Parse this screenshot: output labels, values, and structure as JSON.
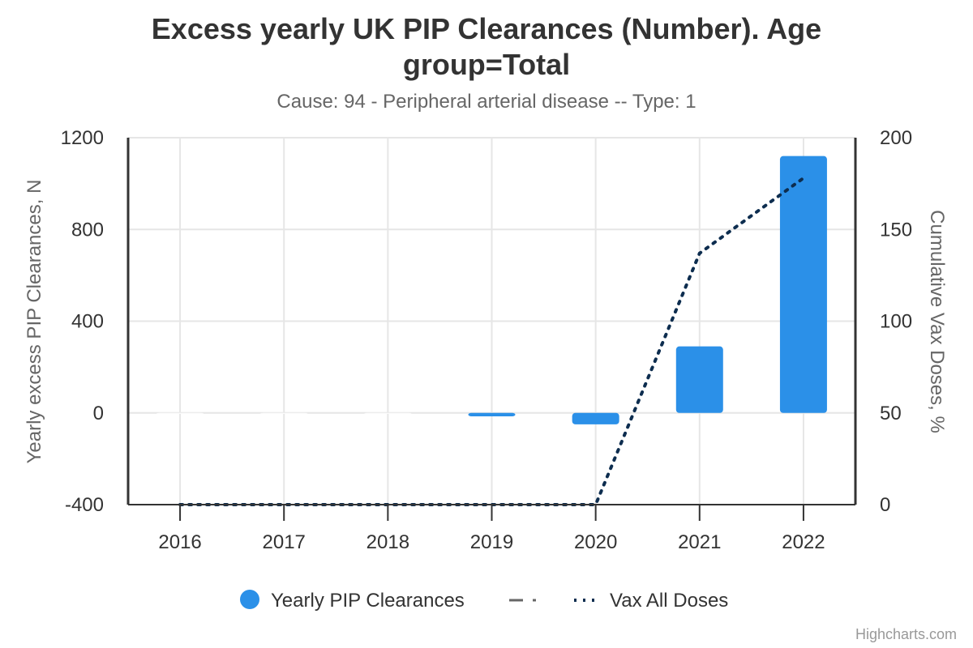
{
  "title": "Excess yearly UK PIP Clearances (Number). Age group=Total",
  "subtitle": "Cause: 94 - Peripheral arterial disease -- Type: 1",
  "credits": "Highcharts.com",
  "colors": {
    "bars": "#2b90e8",
    "vax_line": "#0d2d4f",
    "expected_line": "#666666",
    "grid": "#e6e6e6",
    "axis": "#333333"
  },
  "legend": {
    "placement": "bottom-center",
    "items": [
      {
        "label": "Yearly PIP Clearances",
        "marker": "circle"
      },
      {
        "label": "",
        "marker": "dash-dot"
      },
      {
        "label": "Vax All Doses",
        "marker": "dotted"
      }
    ]
  },
  "chart_data": {
    "type": "bar",
    "title": "Excess yearly UK PIP Clearances (Number). Age group=Total",
    "subtitle": "Cause: 94 - Peripheral arterial disease -- Type: 1",
    "categories": [
      "2016",
      "2017",
      "2018",
      "2019",
      "2020",
      "2021",
      "2022"
    ],
    "grid": true,
    "y_axis_left": {
      "label": "Yearly excess PIP Clearances, N",
      "ylim": [
        -400,
        1200
      ],
      "ticks": [
        -400,
        0,
        400,
        800,
        1200
      ]
    },
    "y_axis_right": {
      "label": "Cumulative Vax Doses, %",
      "ylim": [
        0,
        200
      ],
      "ticks": [
        0,
        50,
        100,
        150,
        200
      ]
    },
    "series": [
      {
        "name": "Yearly PIP Clearances",
        "type": "column",
        "axis": "left",
        "values": [
          0,
          0,
          0,
          -15,
          -50,
          290,
          1120
        ]
      },
      {
        "name": "Vax All Doses",
        "type": "line",
        "style": "dotted",
        "axis": "right",
        "values": [
          0,
          0,
          0,
          0,
          0,
          137,
          178
        ]
      }
    ]
  }
}
